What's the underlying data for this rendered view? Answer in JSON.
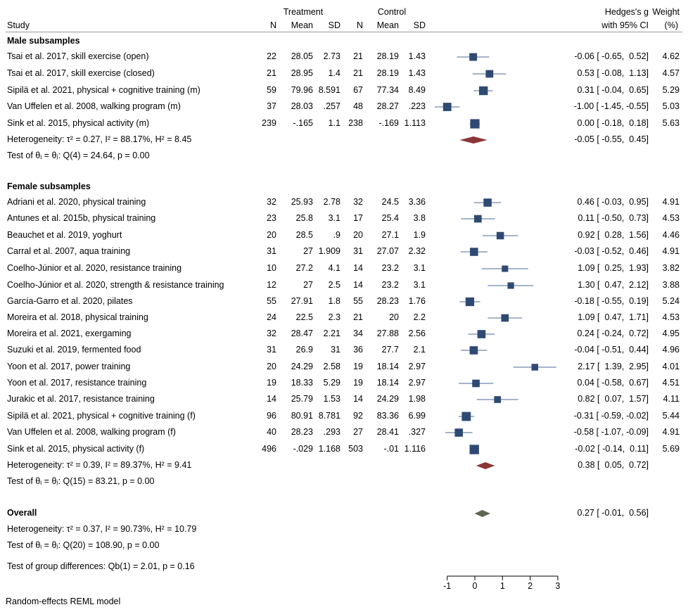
{
  "headers": {
    "treatment": "Treatment",
    "control": "Control",
    "study": "Study",
    "n_t": "N",
    "mean_t": "Mean",
    "sd_t": "SD",
    "n_c": "N",
    "mean_c": "Mean",
    "sd_c": "SD",
    "effect_line1": "Hedges's g",
    "effect_line2": "with 95% CI",
    "weight_line1": "Weight",
    "weight_line2": "(%)"
  },
  "chart_data": {
    "type": "forest",
    "xlim": [
      -1,
      3
    ],
    "ticks": [
      -1,
      0,
      1,
      2,
      3
    ],
    "groups": [
      {
        "name": "Male subsamples",
        "studies": [
          {
            "label": "Tsai et al. 2017, skill exercise (open)",
            "n_t": "22",
            "mean_t": "28.05",
            "sd_t": "2.73",
            "n_c": "21",
            "mean_c": "28.19",
            "sd_c": "1.43",
            "g": -0.06,
            "lo": -0.65,
            "hi": 0.52,
            "ci_text": "-0.06 [ -0.65,  0.52]",
            "weight": "4.62"
          },
          {
            "label": "Tsai et al. 2017, skill exercise (closed)",
            "n_t": "21",
            "mean_t": "28.95",
            "sd_t": "1.4",
            "n_c": "21",
            "mean_c": "28.19",
            "sd_c": "1.43",
            "g": 0.53,
            "lo": -0.08,
            "hi": 1.13,
            "ci_text": "0.53 [ -0.08,  1.13]",
            "weight": "4.57"
          },
          {
            "label": "Sipilä et al. 2021, physical + cognitive training (m)",
            "n_t": "59",
            "mean_t": "79.96",
            "sd_t": "8.591",
            "n_c": "67",
            "mean_c": "77.34",
            "sd_c": "8.49",
            "g": 0.31,
            "lo": -0.04,
            "hi": 0.65,
            "ci_text": "0.31 [ -0.04,  0.65]",
            "weight": "5.29"
          },
          {
            "label": "Van Uffelen et al. 2008, walking program (m)",
            "n_t": "37",
            "mean_t": "28.03",
            "sd_t": ".257",
            "n_c": "48",
            "mean_c": "28.27",
            "sd_c": ".223",
            "g": -1.0,
            "lo": -1.45,
            "hi": -0.55,
            "ci_text": "-1.00 [ -1.45, -0.55]",
            "weight": "5.03"
          },
          {
            "label": "Sink et al. 2015, physical activity (m)",
            "n_t": "239",
            "mean_t": "-.165",
            "sd_t": "1.1",
            "n_c": "238",
            "mean_c": "-.169",
            "sd_c": "1.113",
            "g": 0.0,
            "lo": -0.18,
            "hi": 0.18,
            "ci_text": "0.00 [ -0.18,  0.18]",
            "weight": "5.63"
          }
        ],
        "heterogeneity": "Heterogeneity: τ² = 0.27, I² = 88.17%, H² = 8.45",
        "pooled": {
          "g": -0.05,
          "lo": -0.55,
          "hi": 0.45,
          "ci_text": "-0.05 [ -0.55,  0.45]"
        },
        "test": "Test of θᵢ = θⱼ: Q(4) = 24.64, p = 0.00"
      },
      {
        "name": "Female subsamples",
        "studies": [
          {
            "label": "Adriani et al. 2020, physical training",
            "n_t": "32",
            "mean_t": "25.93",
            "sd_t": "2.78",
            "n_c": "32",
            "mean_c": "24.5",
            "sd_c": "3.36",
            "g": 0.46,
            "lo": -0.03,
            "hi": 0.95,
            "ci_text": "0.46 [ -0.03,  0.95]",
            "weight": "4.91"
          },
          {
            "label": "Antunes et al. 2015b, physical training",
            "n_t": "23",
            "mean_t": "25.8",
            "sd_t": "3.1",
            "n_c": "17",
            "mean_c": "25.4",
            "sd_c": "3.8",
            "g": 0.11,
            "lo": -0.5,
            "hi": 0.73,
            "ci_text": "0.11 [ -0.50,  0.73]",
            "weight": "4.53"
          },
          {
            "label": "Beauchet et al. 2019, yoghurt",
            "n_t": "20",
            "mean_t": "28.5",
            "sd_t": ".9",
            "n_c": "20",
            "mean_c": "27.1",
            "sd_c": "1.9",
            "g": 0.92,
            "lo": 0.28,
            "hi": 1.56,
            "ci_text": "0.92 [  0.28,  1.56]",
            "weight": "4.46"
          },
          {
            "label": "Carral et al. 2007, aqua training",
            "n_t": "31",
            "mean_t": "27",
            "sd_t": "1.909",
            "n_c": "31",
            "mean_c": "27.07",
            "sd_c": "2.32",
            "g": -0.03,
            "lo": -0.52,
            "hi": 0.46,
            "ci_text": "-0.03 [ -0.52,  0.46]",
            "weight": "4.91"
          },
          {
            "label": "Coelho-Júnior et al. 2020, resistance training",
            "n_t": "10",
            "mean_t": "27.2",
            "sd_t": "4.1",
            "n_c": "14",
            "mean_c": "23.2",
            "sd_c": "3.1",
            "g": 1.09,
            "lo": 0.25,
            "hi": 1.93,
            "ci_text": "1.09 [  0.25,  1.93]",
            "weight": "3.82"
          },
          {
            "label": "Coelho-Júnior et al. 2020, strength & resistance training",
            "n_t": "12",
            "mean_t": "27",
            "sd_t": "2.5",
            "n_c": "14",
            "mean_c": "23.2",
            "sd_c": "3.1",
            "g": 1.3,
            "lo": 0.47,
            "hi": 2.12,
            "ci_text": "1.30 [  0.47,  2.12]",
            "weight": "3.88"
          },
          {
            "label": "García-Garro et al. 2020, pilates",
            "n_t": "55",
            "mean_t": "27.91",
            "sd_t": "1.8",
            "n_c": "55",
            "mean_c": "28.23",
            "sd_c": "1.76",
            "g": -0.18,
            "lo": -0.55,
            "hi": 0.19,
            "ci_text": "-0.18 [ -0.55,  0.19]",
            "weight": "5.24"
          },
          {
            "label": "Moreira et al. 2018, physical training",
            "n_t": "24",
            "mean_t": "22.5",
            "sd_t": "2.3",
            "n_c": "21",
            "mean_c": "20",
            "sd_c": "2.2",
            "g": 1.09,
            "lo": 0.47,
            "hi": 1.71,
            "ci_text": "1.09 [  0.47,  1.71]",
            "weight": "4.53"
          },
          {
            "label": "Moreira et al. 2021, exergaming",
            "n_t": "32",
            "mean_t": "28.47",
            "sd_t": "2.21",
            "n_c": "34",
            "mean_c": "27.88",
            "sd_c": "2.56",
            "g": 0.24,
            "lo": -0.24,
            "hi": 0.72,
            "ci_text": "0.24 [ -0.24,  0.72]",
            "weight": "4.95"
          },
          {
            "label": "Suzuki et al. 2019, fermented food",
            "n_t": "31",
            "mean_t": "26.9",
            "sd_t": "31",
            "n_c": "36",
            "mean_c": "27.7",
            "sd_c": "2.1",
            "g": -0.04,
            "lo": -0.51,
            "hi": 0.44,
            "ci_text": "-0.04 [ -0.51,  0.44]",
            "weight": "4.96"
          },
          {
            "label": "Yoon et al. 2017, power training",
            "n_t": "20",
            "mean_t": "24.29",
            "sd_t": "2.58",
            "n_c": "19",
            "mean_c": "18.14",
            "sd_c": "2.97",
            "g": 2.17,
            "lo": 1.39,
            "hi": 2.95,
            "ci_text": "2.17 [  1.39,  2.95]",
            "weight": "4.01"
          },
          {
            "label": "Yoon et al. 2017, resistance training",
            "n_t": "19",
            "mean_t": "18.33",
            "sd_t": "5.29",
            "n_c": "19",
            "mean_c": "18.14",
            "sd_c": "2.97",
            "g": 0.04,
            "lo": -0.58,
            "hi": 0.67,
            "ci_text": "0.04 [ -0.58,  0.67]",
            "weight": "4.51"
          },
          {
            "label": "Jurakic et al. 2017, resistance training",
            "n_t": "14",
            "mean_t": "25.79",
            "sd_t": "1.53",
            "n_c": "14",
            "mean_c": "24.29",
            "sd_c": "1.98",
            "g": 0.82,
            "lo": 0.07,
            "hi": 1.57,
            "ci_text": "0.82 [  0.07,  1.57]",
            "weight": "4.11"
          },
          {
            "label": "Sipilä et al. 2021, physical + cognitive training (f)",
            "n_t": "96",
            "mean_t": "80.91",
            "sd_t": "8.781",
            "n_c": "92",
            "mean_c": "83.36",
            "sd_c": "6.99",
            "g": -0.31,
            "lo": -0.59,
            "hi": -0.02,
            "ci_text": "-0.31 [ -0.59, -0.02]",
            "weight": "5.44"
          },
          {
            "label": "Van Uffelen et al. 2008, walking program (f)",
            "n_t": "40",
            "mean_t": "28.23",
            "sd_t": ".293",
            "n_c": "27",
            "mean_c": "28.41",
            "sd_c": ".327",
            "g": -0.58,
            "lo": -1.07,
            "hi": -0.09,
            "ci_text": "-0.58 [ -1.07, -0.09]",
            "weight": "4.91"
          },
          {
            "label": "Sink et al. 2015, physical activity (f)",
            "n_t": "496",
            "mean_t": "-.029",
            "sd_t": "1.168",
            "n_c": "503",
            "mean_c": "-.01",
            "sd_c": "1.116",
            "g": -0.02,
            "lo": -0.14,
            "hi": 0.11,
            "ci_text": "-0.02 [ -0.14,  0.11]",
            "weight": "5.69"
          }
        ],
        "heterogeneity": "Heterogeneity: τ² = 0.39, I² = 89.37%, H² = 9.41",
        "pooled": {
          "g": 0.38,
          "lo": 0.05,
          "hi": 0.72,
          "ci_text": "0.38 [  0.05,  0.72]"
        },
        "test": "Test of θᵢ = θⱼ: Q(15) = 83.21, p = 0.00"
      }
    ],
    "overall": {
      "label": "Overall",
      "heterogeneity": "Heterogeneity: τ² = 0.37, I² = 90.73%, H² = 10.79",
      "test": "Test of θᵢ = θⱼ: Q(20) = 108.90, p = 0.00",
      "g": 0.27,
      "lo": -0.01,
      "hi": 0.56,
      "ci_text": "0.27 [ -0.01,  0.56]"
    },
    "group_test": "Test of group differences: Qb(1) = 2.01, p = 0.16",
    "footer": "Random-effects REML model",
    "colors": {
      "marker": "#2e4a72",
      "subgroup_diamond": "#8b3535",
      "overall_diamond": "#5e6650",
      "ci_line": "#4a6a9a"
    }
  }
}
